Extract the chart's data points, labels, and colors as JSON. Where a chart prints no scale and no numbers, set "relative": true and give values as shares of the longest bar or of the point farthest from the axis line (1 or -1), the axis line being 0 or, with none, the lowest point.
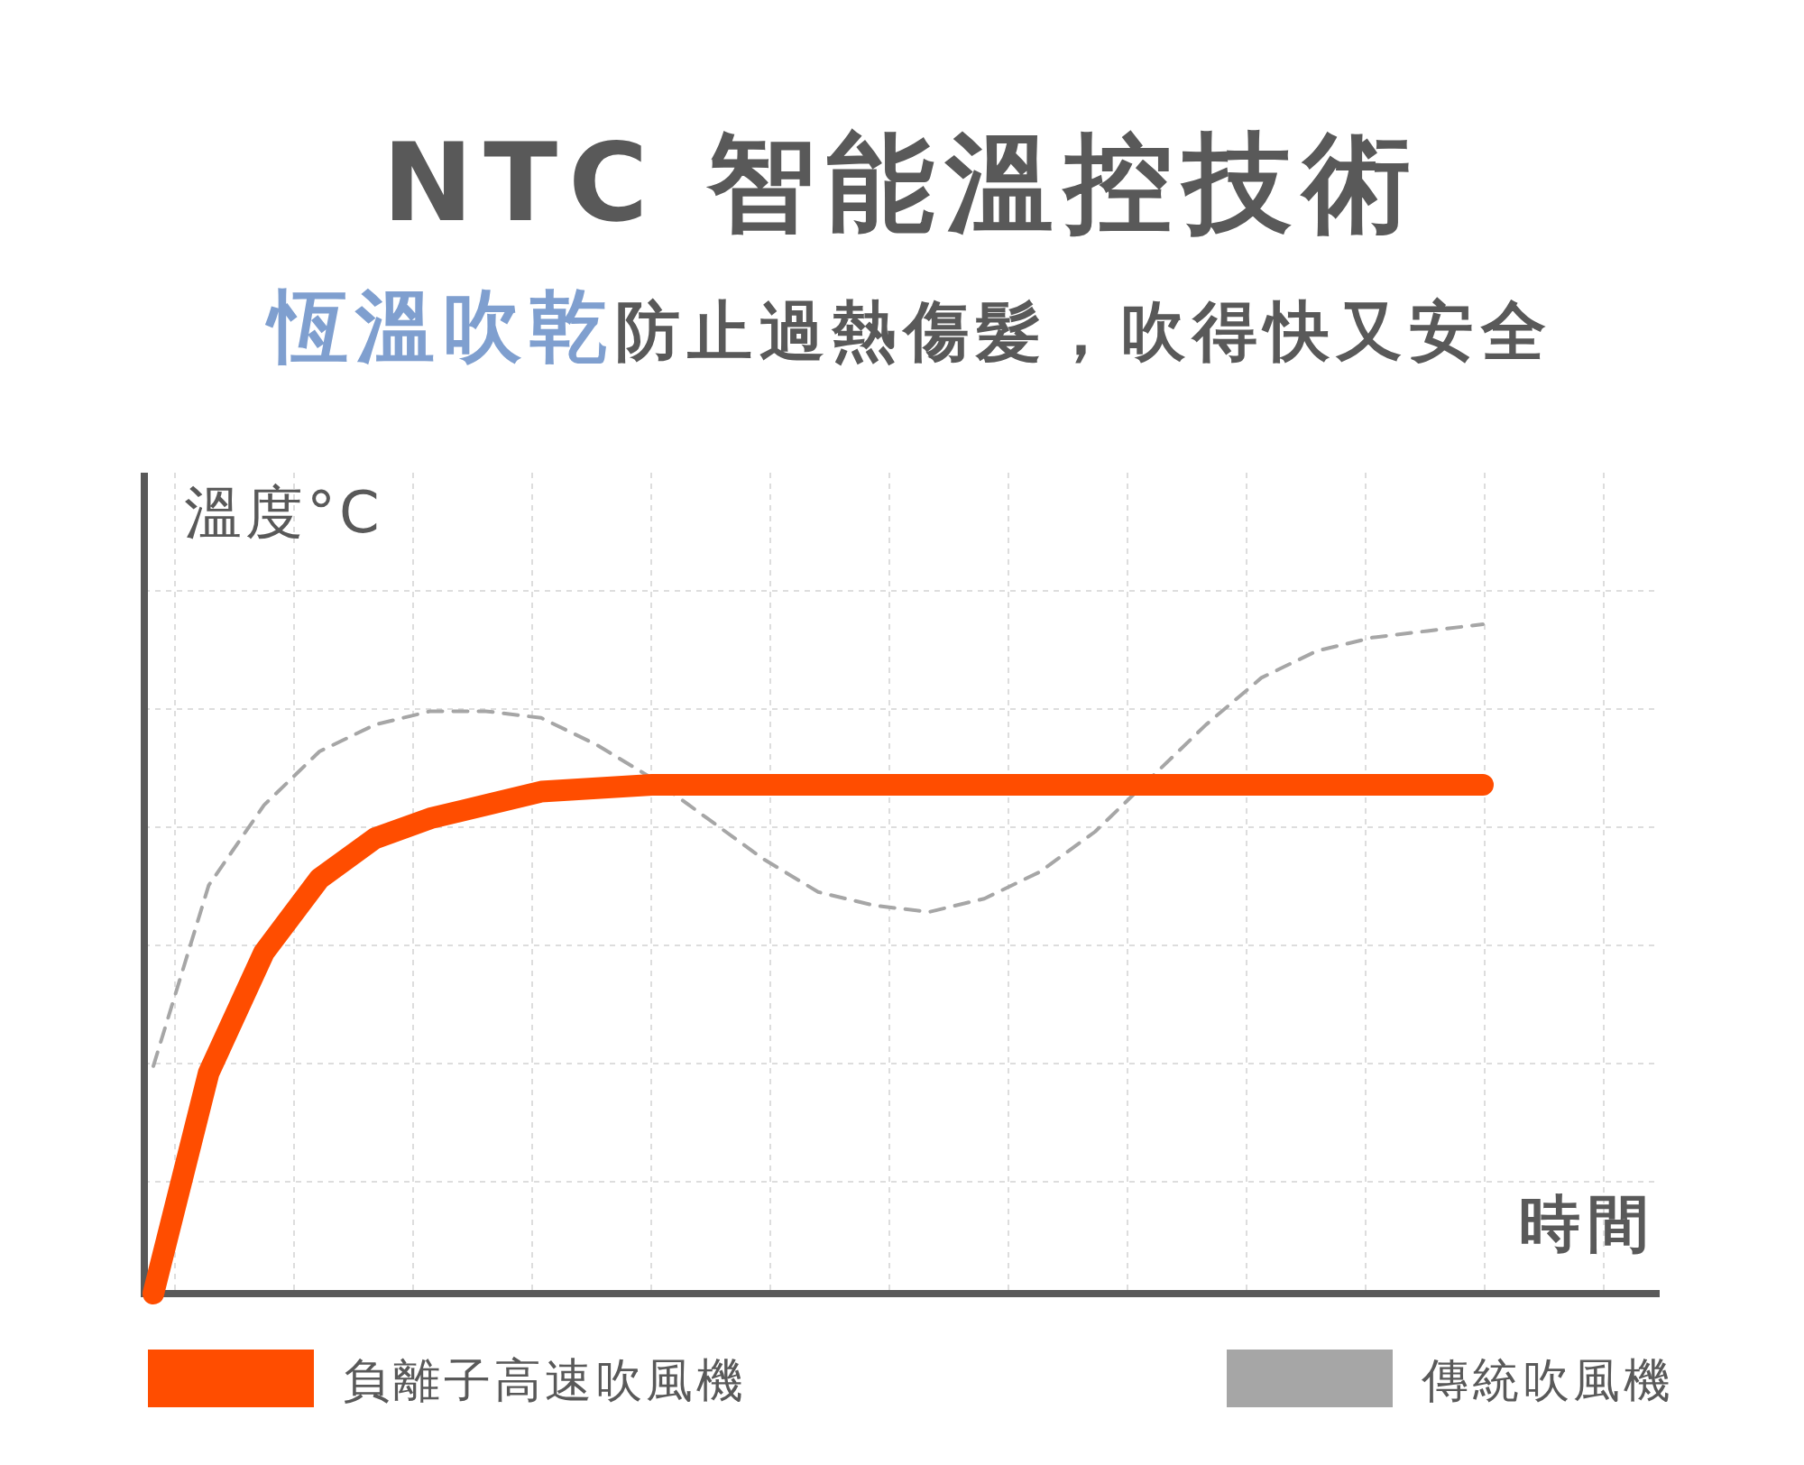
{
  "chart_data": {
    "type": "line",
    "title": "NTC 智能溫控技術",
    "subtitle": "恆溫吹乾防止過熱傷髮，吹得快又安全",
    "ylabel": "溫度°C",
    "xlabel": "時間",
    "relative": true,
    "grid": true,
    "legend": "bottom",
    "categories": [
      null,
      null,
      null,
      null,
      null,
      null,
      null,
      null,
      null,
      null,
      null,
      null,
      null,
      null,
      null,
      null,
      null,
      null,
      null,
      null,
      null,
      null,
      null,
      null,
      null
    ],
    "series": [
      {
        "name": "負離子高速吹風機",
        "color": "#ff4d00",
        "line_style": "solid",
        "values": [
          0,
          0.33,
          0.51,
          0.62,
          0.68,
          0.71,
          0.73,
          0.75,
          0.755,
          0.76,
          0.76,
          0.76,
          0.76,
          0.76,
          0.76,
          0.76,
          0.76,
          0.76,
          0.76,
          0.76,
          0.76,
          0.76,
          0.76,
          0.76,
          0.76
        ]
      },
      {
        "name": "傳統吹風機",
        "color": "#a6a6a6",
        "line_style": "dashed",
        "values": [
          0.34,
          0.61,
          0.73,
          0.81,
          0.85,
          0.87,
          0.87,
          0.86,
          0.82,
          0.77,
          0.71,
          0.65,
          0.6,
          0.58,
          0.57,
          0.59,
          0.63,
          0.69,
          0.77,
          0.85,
          0.92,
          0.96,
          0.98,
          0.99,
          1.0
        ]
      }
    ]
  }
}
